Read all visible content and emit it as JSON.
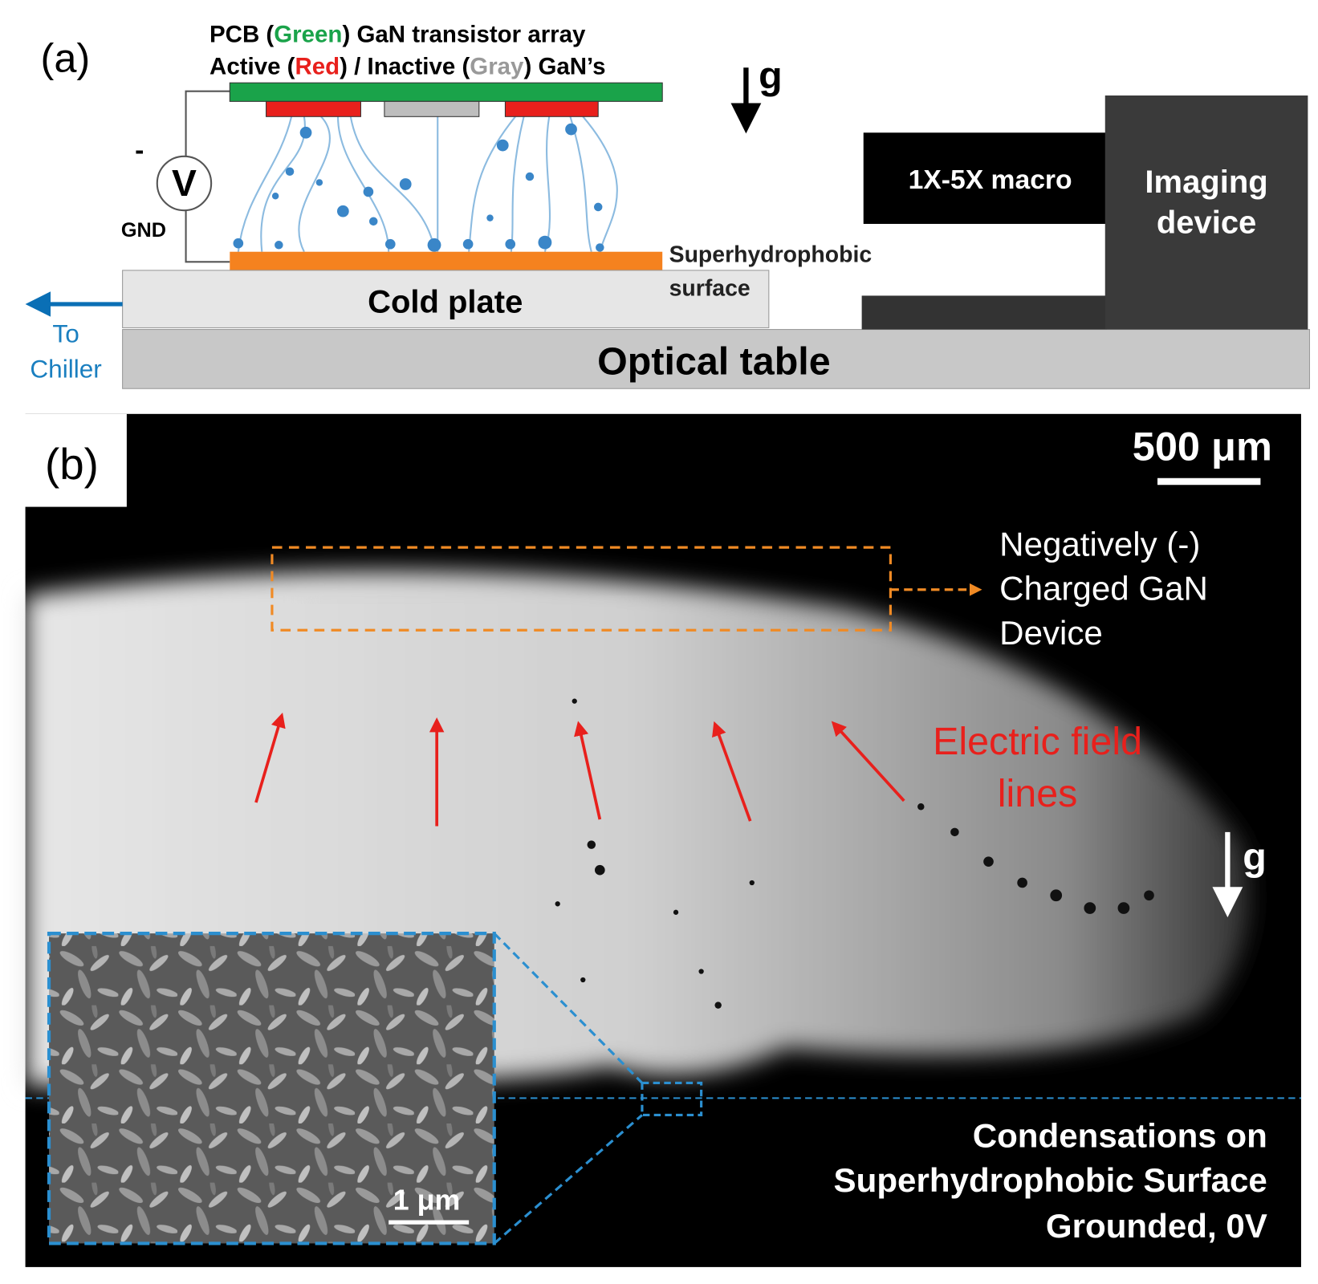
{
  "panel_a": {
    "label": "(a)",
    "legend": {
      "line1": [
        "PCB (",
        "Green",
        ") GaN transistor array"
      ],
      "line2": [
        "Active (",
        "Red",
        ") / Inactive (",
        "Gray",
        ") GaN’s"
      ]
    },
    "polarity": "-",
    "voltmeter": "V",
    "ground": "GND",
    "gravity": "g",
    "camera_lens": "1X-5X macro",
    "camera": [
      "Imaging",
      "device"
    ],
    "surface": [
      "Superhydrophobic",
      "surface"
    ],
    "cold_plate": "Cold plate",
    "optical_table": "Optical table",
    "chiller": [
      "To",
      "Chiller"
    ]
  },
  "panel_b": {
    "label": "(b)",
    "scale_bar": "500 μm",
    "device_note": [
      "Negatively (-)",
      "Charged GaN",
      "Device"
    ],
    "field_note": [
      "Electric field",
      "lines"
    ],
    "gravity": "g",
    "inset_scale_bar": "1 μm",
    "surface_note": [
      "Condensations on",
      "Superhydrophobic Surface",
      "Grounded, 0V"
    ]
  }
}
